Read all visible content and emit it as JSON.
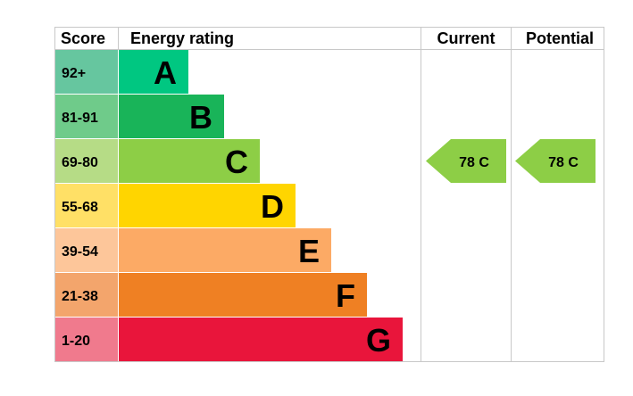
{
  "headers": {
    "score": "Score",
    "energy_rating": "Energy rating",
    "current": "Current",
    "potential": "Potential"
  },
  "chart_data": {
    "type": "bar",
    "title": "",
    "bands": [
      {
        "score": "92+",
        "letter": "A",
        "band_color": "#00c781",
        "score_color": "#66c69f"
      },
      {
        "score": "81-91",
        "letter": "B",
        "band_color": "#19b459",
        "score_color": "#6fcb8a"
      },
      {
        "score": "69-80",
        "letter": "C",
        "band_color": "#8dce46",
        "score_color": "#b6dc86"
      },
      {
        "score": "55-68",
        "letter": "D",
        "band_color": "#ffd500",
        "score_color": "#ffe066"
      },
      {
        "score": "39-54",
        "letter": "E",
        "band_color": "#fcaa65",
        "score_color": "#fdc69a"
      },
      {
        "score": "21-38",
        "letter": "F",
        "band_color": "#ef8023",
        "score_color": "#f3a56c"
      },
      {
        "score": "1-20",
        "letter": "G",
        "band_color": "#e9153b",
        "score_color": "#f07a8d"
      }
    ],
    "current": {
      "value": 78,
      "letter": "C",
      "label": "78  C",
      "color": "#8dce46"
    },
    "potential": {
      "value": 78,
      "letter": "C",
      "label": "78  C",
      "color": "#8dce46"
    }
  }
}
